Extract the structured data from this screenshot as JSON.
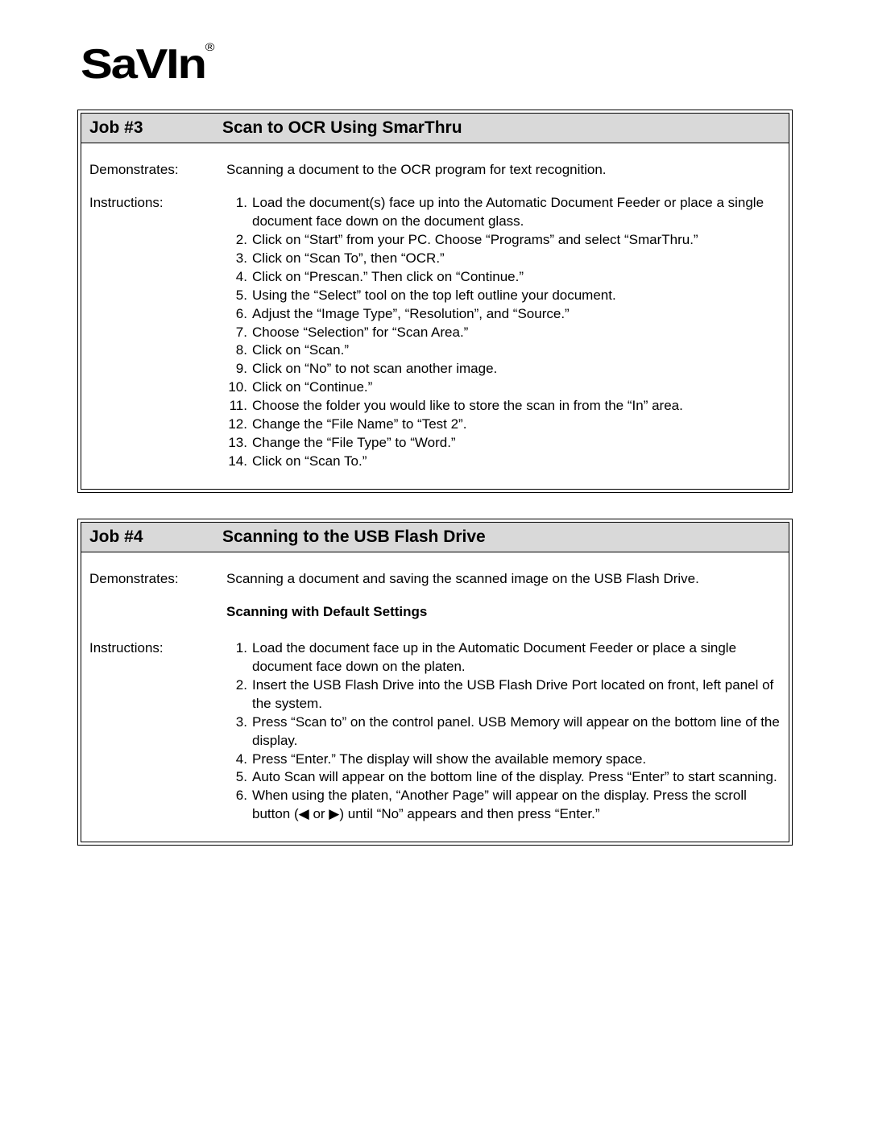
{
  "logo": "SaVIn",
  "logo_reg": "®",
  "jobs": [
    {
      "num": "Job #3",
      "title": "Scan to OCR Using SmarThru",
      "demonstrates_label": "Demonstrates:",
      "demonstrates": "Scanning a document to the OCR program for text recognition.",
      "instructions_label": "Instructions:",
      "steps": [
        "Load the document(s) face up into the Automatic Document Feeder or place a single document face down on the document glass.",
        "Click on “Start” from your PC.  Choose “Programs” and select “SmarThru.”",
        "Click on “Scan To”, then “OCR.”",
        "Click on “Prescan.”  Then click on “Continue.”",
        "Using the “Select” tool on the top left outline your document.",
        "Adjust the “Image Type”, “Resolution”, and “Source.”",
        "Choose “Selection” for “Scan Area.”",
        "Click on “Scan.”",
        "Click on “No” to not scan another image.",
        "Click on “Continue.”",
        "Choose the folder you would like to store the scan in from the “In” area.",
        "Change the “File Name” to “Test 2”.",
        "Change the “File Type” to “Word.”",
        "Click on “Scan To.”"
      ]
    },
    {
      "num": "Job #4",
      "title": "Scanning to the USB Flash Drive",
      "demonstrates_label": "Demonstrates:",
      "demonstrates": "Scanning a document and saving the scanned image on the USB Flash Drive.",
      "instructions_label": "Instructions:",
      "subheading": "Scanning with Default Settings",
      "steps": [
        "Load the document face up in the Automatic Document Feeder or place a single document face down on the platen.",
        "Insert the USB Flash Drive into the USB Flash Drive Port located on front, left panel of the system.",
        "Press “Scan to” on the control panel.  USB Memory will appear on the bottom line of the display.",
        "Press “Enter.”  The display will show the available memory space.",
        "Auto Scan will appear on the bottom line of the display.  Press “Enter” to start scanning.",
        "When using the platen, “Another Page” will appear on the display.  Press the scroll button (◀ or ▶) until “No” appears and then press “Enter.”"
      ]
    }
  ]
}
